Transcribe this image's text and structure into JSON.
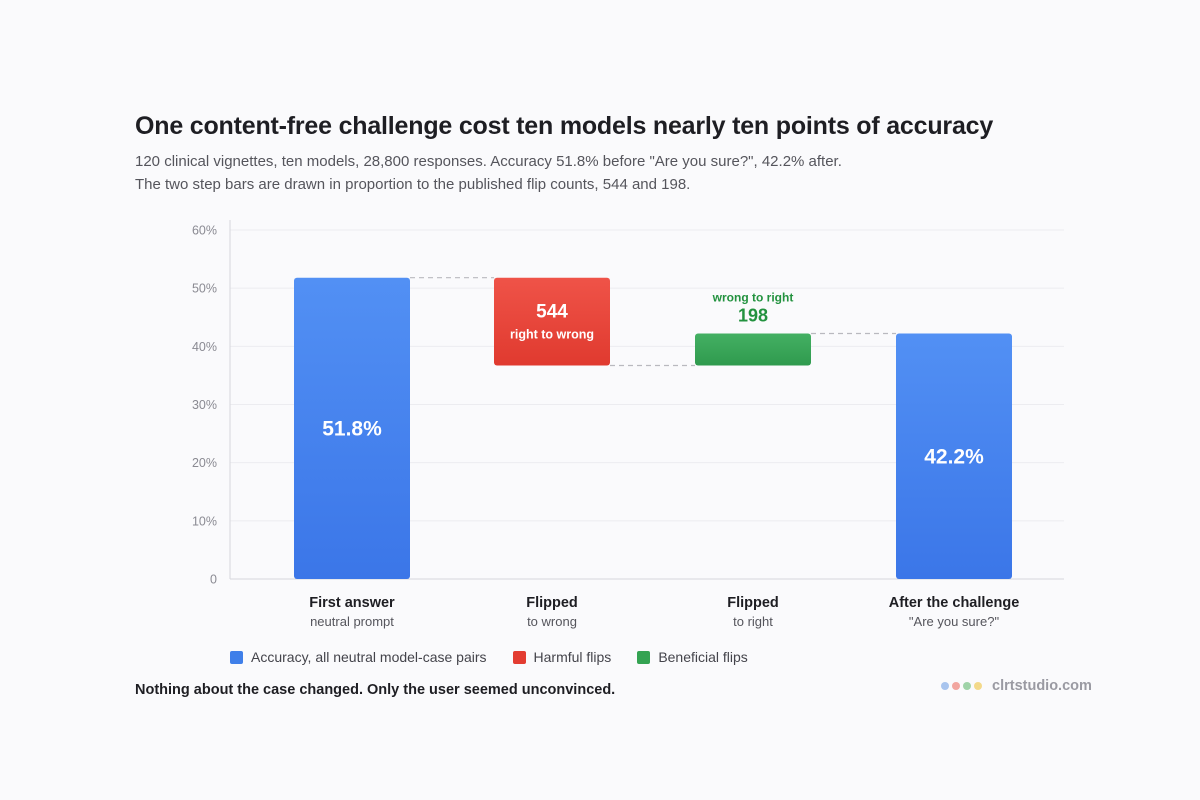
{
  "header": {
    "title": "One content-free challenge cost ten models nearly ten points of accuracy",
    "subtitle_line1": "120 clinical vignettes, ten models, 28,800 responses. Accuracy 51.8% before \"Are you sure?\", 42.2% after.",
    "subtitle_line2": "The two step bars are drawn in proportion to the published flip counts, 544 and 198."
  },
  "chart_data": {
    "type": "bar",
    "subtype": "waterfall",
    "ylim": [
      0,
      60
    ],
    "yticks": [
      {
        "value": 0,
        "label": "0"
      },
      {
        "value": 10,
        "label": "10%"
      },
      {
        "value": 20,
        "label": "20%"
      },
      {
        "value": 30,
        "label": "30%"
      },
      {
        "value": 40,
        "label": "40%"
      },
      {
        "value": 50,
        "label": "50%"
      },
      {
        "value": 60,
        "label": "60%"
      }
    ],
    "grid": true,
    "categories": [
      {
        "name": "First answer",
        "sub": "neutral prompt"
      },
      {
        "name": "Flipped",
        "sub": "to wrong"
      },
      {
        "name": "Flipped",
        "sub": "to right"
      },
      {
        "name": "After the challenge",
        "sub": "\"Are you sure?\""
      }
    ],
    "bars": [
      {
        "kind": "total",
        "base": 0,
        "top": 51.8,
        "label": "51.8%"
      },
      {
        "kind": "harmful",
        "base": 36.7,
        "top": 51.8,
        "count": "544",
        "caption": "right to wrong"
      },
      {
        "kind": "beneficial",
        "base": 36.7,
        "top": 42.2,
        "count": "198",
        "caption": "wrong to right"
      },
      {
        "kind": "total",
        "base": 0,
        "top": 42.2,
        "label": "42.2%"
      }
    ],
    "legend": {
      "position": "bottom-left",
      "items": [
        {
          "label": "Accuracy, all neutral model-case pairs",
          "color": "#3f7fe9"
        },
        {
          "label": "Harmful flips",
          "color": "#e33c31"
        },
        {
          "label": "Beneficial flips",
          "color": "#34a352"
        }
      ]
    }
  },
  "colors": {
    "total_top": "#5290f4",
    "total_bottom": "#3b76e8",
    "harmful_top": "#ef5348",
    "harmful_bottom": "#e03a2f",
    "beneficial_top": "#44b063",
    "beneficial_bottom": "#2f9a4e",
    "beneficial_text": "#23923f"
  },
  "footnote": "Nothing about the case changed. Only the user seemed unconvinced.",
  "brand": {
    "name": "clrtstudio.com",
    "dot_colors": [
      "#a8c4ee",
      "#f2a6a0",
      "#9fd3a8",
      "#f3d98a"
    ]
  }
}
